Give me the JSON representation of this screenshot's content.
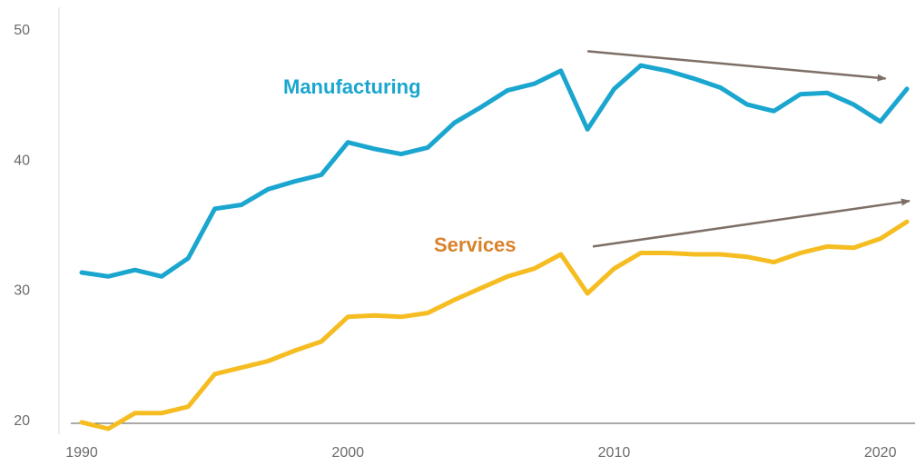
{
  "chart_data": {
    "type": "line",
    "title": "",
    "xlabel": "",
    "ylabel": "",
    "xlim": [
      1990,
      2021
    ],
    "ylim": [
      20,
      50
    ],
    "x_ticks": [
      "1990",
      "2000",
      "2010",
      "2020"
    ],
    "y_ticks": [
      "20",
      "30",
      "40",
      "50"
    ],
    "x": [
      1990,
      1991,
      1992,
      1993,
      1994,
      1995,
      1996,
      1997,
      1998,
      1999,
      2000,
      2001,
      2002,
      2003,
      2004,
      2005,
      2006,
      2007,
      2008,
      2009,
      2010,
      2011,
      2012,
      2013,
      2014,
      2015,
      2016,
      2017,
      2018,
      2019,
      2020,
      2021
    ],
    "series": [
      {
        "name": "Manufacturing",
        "color": "#1aa6cf",
        "values": [
          31.3,
          31.0,
          31.5,
          31.0,
          32.4,
          36.2,
          36.5,
          37.7,
          38.3,
          38.8,
          41.3,
          40.8,
          40.4,
          40.9,
          42.8,
          44.0,
          45.3,
          45.8,
          46.8,
          42.3,
          45.4,
          47.2,
          46.8,
          46.2,
          45.5,
          44.2,
          43.7,
          45.0,
          45.1,
          44.2,
          42.9,
          45.4
        ]
      },
      {
        "name": "Services",
        "color": "#f5bd22",
        "values": [
          19.8,
          19.3,
          20.5,
          20.5,
          21.0,
          23.5,
          24.0,
          24.5,
          25.3,
          26.0,
          27.9,
          28.0,
          27.9,
          28.2,
          29.2,
          30.1,
          31.0,
          31.6,
          32.7,
          29.7,
          31.6,
          32.8,
          32.8,
          32.7,
          32.7,
          32.5,
          32.1,
          32.8,
          33.3,
          33.2,
          33.9,
          35.2
        ]
      }
    ],
    "annotations": [
      {
        "type": "label",
        "text": "Manufacturing",
        "color": "#1aa6cf"
      },
      {
        "type": "label",
        "text": "Services",
        "color": "#d9822b"
      },
      {
        "type": "arrow",
        "color": "#7d6f66",
        "x1": 2009.0,
        "y1": 48.3,
        "x2": 2020.2,
        "y2": 46.2
      },
      {
        "type": "arrow",
        "color": "#7d6f66",
        "x1": 2009.2,
        "y1": 33.3,
        "x2": 2021.1,
        "y2": 36.8
      }
    ],
    "grid": false
  }
}
